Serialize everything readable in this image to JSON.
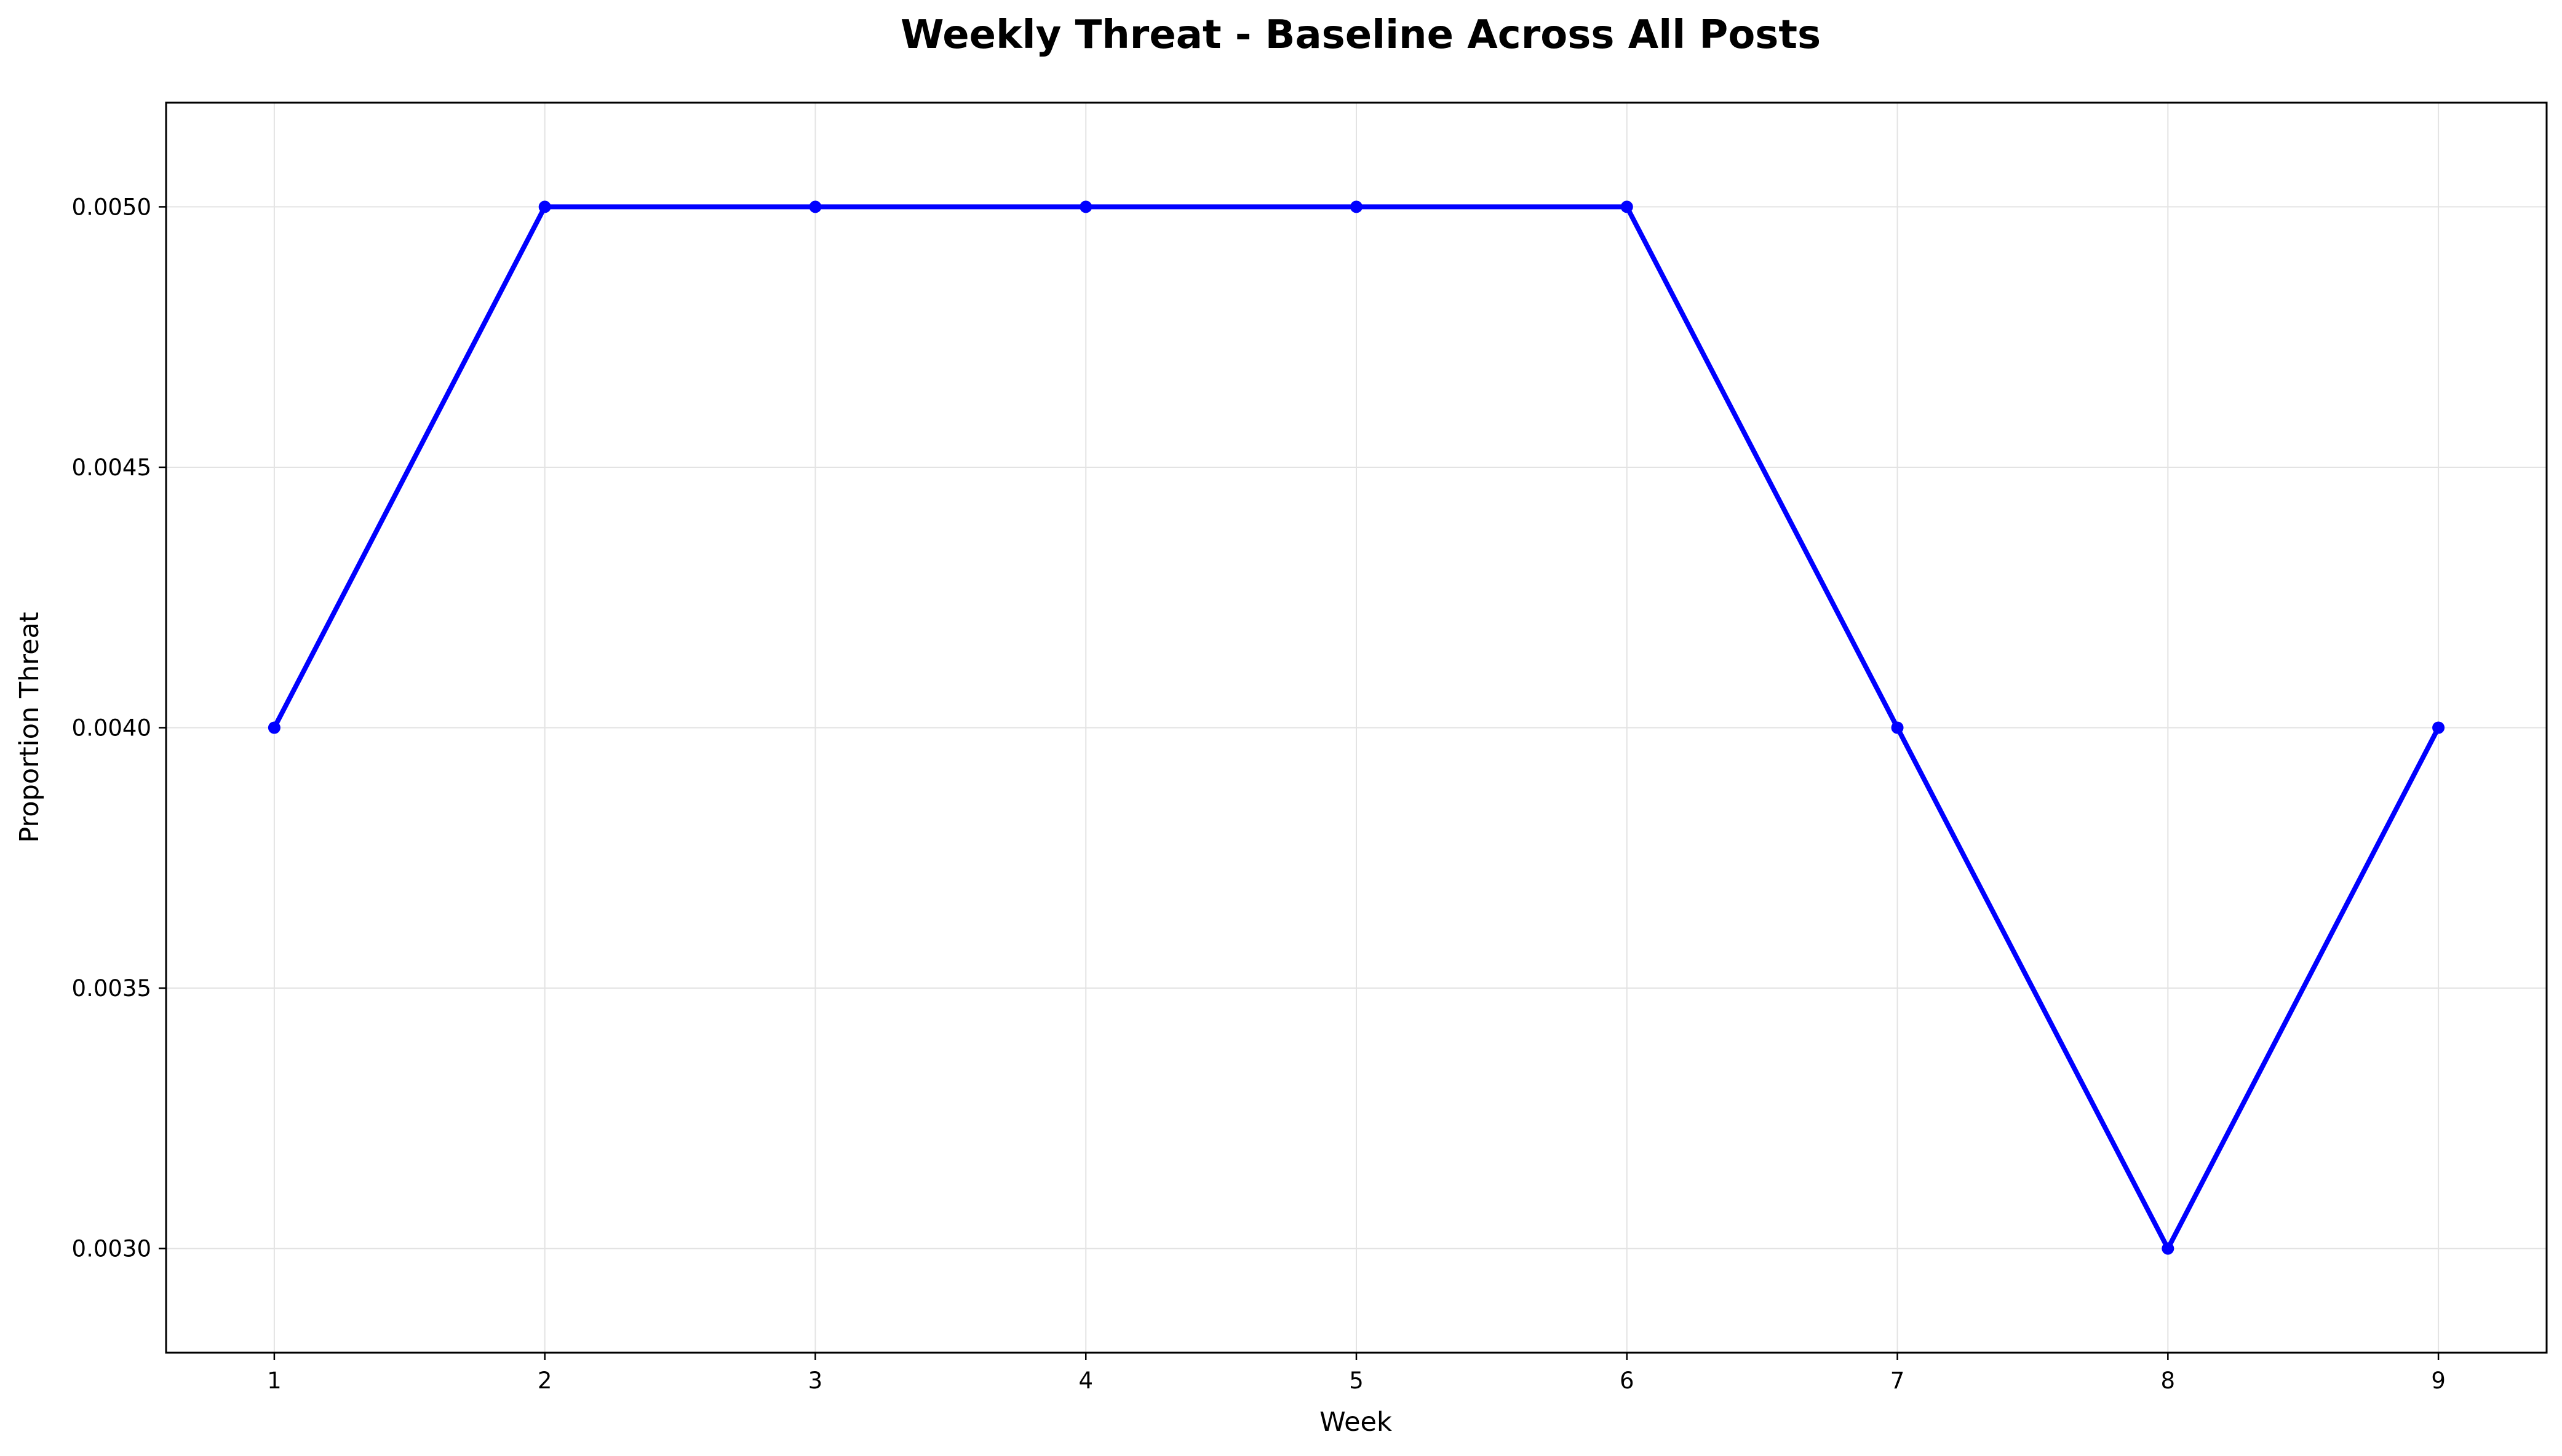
{
  "chart_data": {
    "type": "line",
    "title": "Weekly Threat - Baseline Across All Posts",
    "xlabel": "Week",
    "ylabel": "Proportion Threat",
    "x": [
      1,
      2,
      3,
      4,
      5,
      6,
      7,
      8,
      9
    ],
    "xtick_labels": [
      "1",
      "2",
      "3",
      "4",
      "5",
      "6",
      "7",
      "8",
      "9"
    ],
    "y": [
      0.004,
      0.005,
      0.005,
      0.005,
      0.005,
      0.005,
      0.004,
      0.003,
      0.004
    ],
    "yticks": [
      0.003,
      0.0035,
      0.004,
      0.0045,
      0.005
    ],
    "ytick_labels": [
      "0.0030",
      "0.0035",
      "0.0040",
      "0.0045",
      "0.0050"
    ],
    "xlim": [
      0.6,
      9.4
    ],
    "ylim": [
      0.0028,
      0.0052
    ],
    "grid": true,
    "line_color": "#0000ff",
    "marker": "circle"
  }
}
